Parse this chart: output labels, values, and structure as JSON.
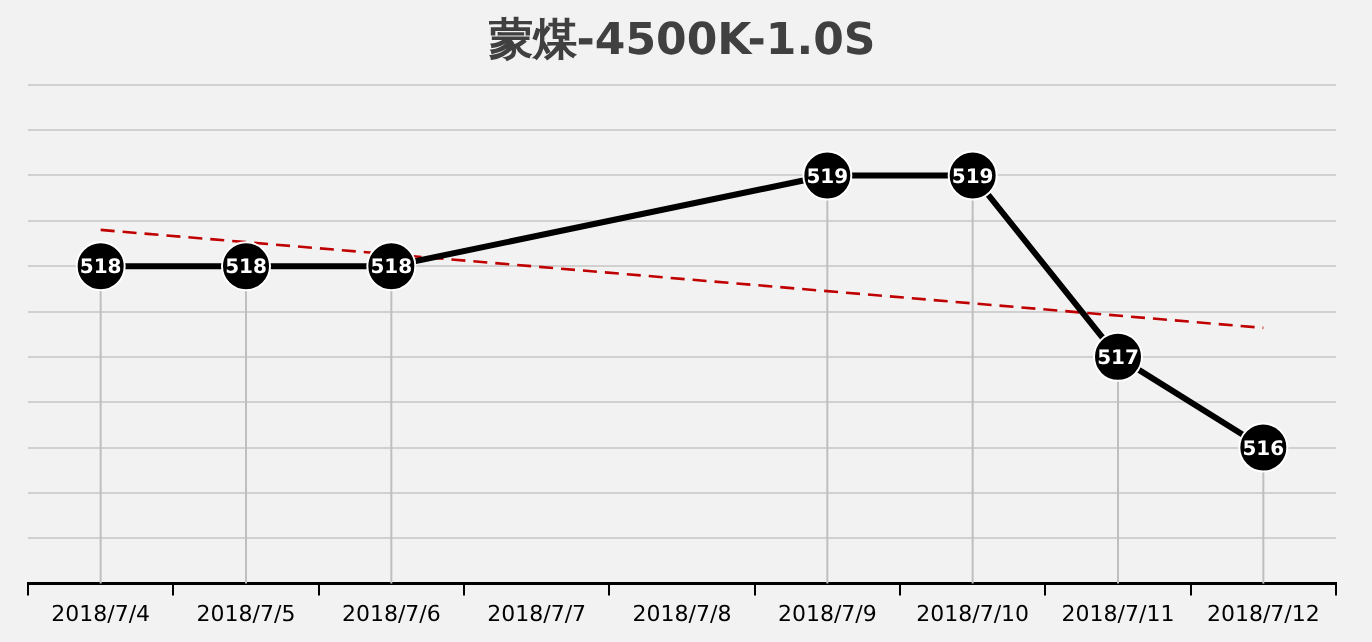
{
  "chart_data": {
    "type": "line",
    "title": "蒙煤-4500K-1.0S",
    "categories": [
      "2018/7/4",
      "2018/7/5",
      "2018/7/6",
      "2018/7/7",
      "2018/7/8",
      "2018/7/9",
      "2018/7/10",
      "2018/7/11",
      "2018/7/12"
    ],
    "series": [
      {
        "color": "#000000",
        "values": [
          518,
          518,
          518,
          null,
          null,
          519,
          519,
          517,
          516
        ],
        "value_labels": [
          "518",
          "518",
          "518",
          null,
          null,
          "519",
          "519",
          "517",
          "516"
        ],
        "marker": "circle",
        "line_style": "solid"
      },
      {
        "type": "line",
        "color": "#c00000",
        "values": [
          518.4,
          null,
          null,
          null,
          null,
          null,
          null,
          null,
          517.32
        ],
        "marker": "none",
        "line_style": "dashed"
      }
    ],
    "ylim": [
      514.5,
      520
    ],
    "yticks": [
      {
        "value": 514.5,
        "label": null
      },
      {
        "value": 515,
        "label": null
      },
      {
        "value": 515.5,
        "label": null
      },
      {
        "value": 516,
        "label": null
      },
      {
        "value": 516.5,
        "label": null
      },
      {
        "value": 517,
        "label": null
      },
      {
        "value": 517.5,
        "label": null
      },
      {
        "value": 518,
        "label": null
      },
      {
        "value": 518.5,
        "label": null
      },
      {
        "value": 519,
        "label": null
      },
      {
        "value": 519.5,
        "label": null
      },
      {
        "value": 520,
        "label": null
      }
    ],
    "tick_labels": "x",
    "grid": true,
    "legend": false
  }
}
